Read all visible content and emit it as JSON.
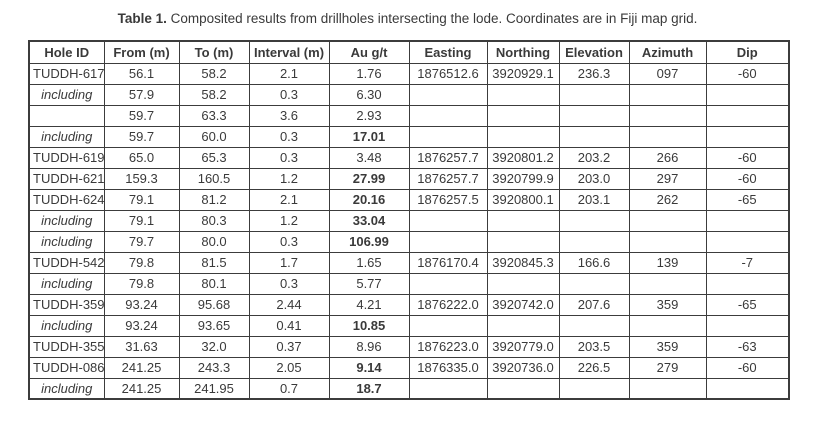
{
  "caption": {
    "label": "Table 1.",
    "text": "Composited results from drillholes intersecting the lode. Coordinates are in Fiji map grid."
  },
  "table": {
    "headers": [
      "Hole ID",
      "From (m)",
      "To (m)",
      "Interval (m)",
      "Au g/t",
      "Easting",
      "Northing",
      "Elevation",
      "Azimuth",
      "Dip"
    ],
    "rows": [
      {
        "cells": [
          "TUDDH-617",
          "56.1",
          "58.2",
          "2.1",
          "1.76",
          "1876512.6",
          "3920929.1",
          "236.3",
          "097",
          "-60"
        ],
        "italic_label": false,
        "bold_au": false
      },
      {
        "cells": [
          "including",
          "57.9",
          "58.2",
          "0.3",
          "6.30",
          "",
          "",
          "",
          "",
          ""
        ],
        "italic_label": true,
        "bold_au": false
      },
      {
        "cells": [
          "",
          "59.7",
          "63.3",
          "3.6",
          "2.93",
          "",
          "",
          "",
          "",
          ""
        ],
        "italic_label": false,
        "bold_au": false
      },
      {
        "cells": [
          "including",
          "59.7",
          "60.0",
          "0.3",
          "17.01",
          "",
          "",
          "",
          "",
          ""
        ],
        "italic_label": true,
        "bold_au": true
      },
      {
        "cells": [
          "TUDDH-619",
          "65.0",
          "65.3",
          "0.3",
          "3.48",
          "1876257.7",
          "3920801.2",
          "203.2",
          "266",
          "-60"
        ],
        "italic_label": false,
        "bold_au": false
      },
      {
        "cells": [
          "TUDDH-621",
          "159.3",
          "160.5",
          "1.2",
          "27.99",
          "1876257.7",
          "3920799.9",
          "203.0",
          "297",
          "-60"
        ],
        "italic_label": false,
        "bold_au": true
      },
      {
        "cells": [
          "TUDDH-624",
          "79.1",
          "81.2",
          "2.1",
          "20.16",
          "1876257.5",
          "3920800.1",
          "203.1",
          "262",
          "-65"
        ],
        "italic_label": false,
        "bold_au": true
      },
      {
        "cells": [
          "including",
          "79.1",
          "80.3",
          "1.2",
          "33.04",
          "",
          "",
          "",
          "",
          ""
        ],
        "italic_label": true,
        "bold_au": true
      },
      {
        "cells": [
          "including",
          "79.7",
          "80.0",
          "0.3",
          "106.99",
          "",
          "",
          "",
          "",
          ""
        ],
        "italic_label": true,
        "bold_au": true
      },
      {
        "cells": [
          "TUDDH-542",
          "79.8",
          "81.5",
          "1.7",
          "1.65",
          "1876170.4",
          "3920845.3",
          "166.6",
          "139",
          "-7"
        ],
        "italic_label": false,
        "bold_au": false
      },
      {
        "cells": [
          "including",
          "79.8",
          "80.1",
          "0.3",
          "5.77",
          "",
          "",
          "",
          "",
          ""
        ],
        "italic_label": true,
        "bold_au": false
      },
      {
        "cells": [
          "TUDDH-359",
          "93.24",
          "95.68",
          "2.44",
          "4.21",
          "1876222.0",
          "3920742.0",
          "207.6",
          "359",
          "-65"
        ],
        "italic_label": false,
        "bold_au": false
      },
      {
        "cells": [
          "including",
          "93.24",
          "93.65",
          "0.41",
          "10.85",
          "",
          "",
          "",
          "",
          ""
        ],
        "italic_label": true,
        "bold_au": true
      },
      {
        "cells": [
          "TUDDH-355",
          "31.63",
          "32.0",
          "0.37",
          "8.96",
          "1876223.0",
          "3920779.0",
          "203.5",
          "359",
          "-63"
        ],
        "italic_label": false,
        "bold_au": false
      },
      {
        "cells": [
          "TUDDH-086",
          "241.25",
          "243.3",
          "2.05",
          "9.14",
          "1876335.0",
          "3920736.0",
          "226.5",
          "279",
          "-60"
        ],
        "italic_label": false,
        "bold_au": true
      },
      {
        "cells": [
          "including",
          "241.25",
          "241.95",
          "0.7",
          "18.7",
          "",
          "",
          "",
          "",
          ""
        ],
        "italic_label": true,
        "bold_au": true
      }
    ]
  },
  "colors": {
    "text": "#3a3a3a",
    "border": "#3c3c3c",
    "background": "#ffffff"
  }
}
